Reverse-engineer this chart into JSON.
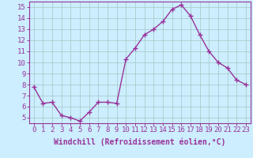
{
  "x": [
    0,
    1,
    2,
    3,
    4,
    5,
    6,
    7,
    8,
    9,
    10,
    11,
    12,
    13,
    14,
    15,
    16,
    17,
    18,
    19,
    20,
    21,
    22,
    23
  ],
  "y": [
    7.8,
    6.3,
    6.4,
    5.2,
    5.0,
    4.7,
    5.5,
    6.4,
    6.4,
    6.3,
    10.3,
    11.3,
    12.5,
    13.0,
    13.7,
    14.8,
    15.2,
    14.2,
    12.5,
    11.0,
    10.0,
    9.5,
    8.4,
    8.0
  ],
  "line_color": "#993399",
  "marker": "+",
  "marker_size": 4,
  "bg_color": "#cceeff",
  "grid_color": "#aacccc",
  "xlabel": "Windchill (Refroidissement éolien,°C)",
  "ylabel_ticks": [
    5,
    6,
    7,
    8,
    9,
    10,
    11,
    12,
    13,
    14,
    15
  ],
  "xlim": [
    -0.5,
    23.5
  ],
  "ylim": [
    4.5,
    15.5
  ],
  "xlabel_fontsize": 7.0,
  "tick_fontsize": 6.5,
  "line_width": 1.0,
  "axis_color": "#993399",
  "marker_linewidth": 1.0
}
